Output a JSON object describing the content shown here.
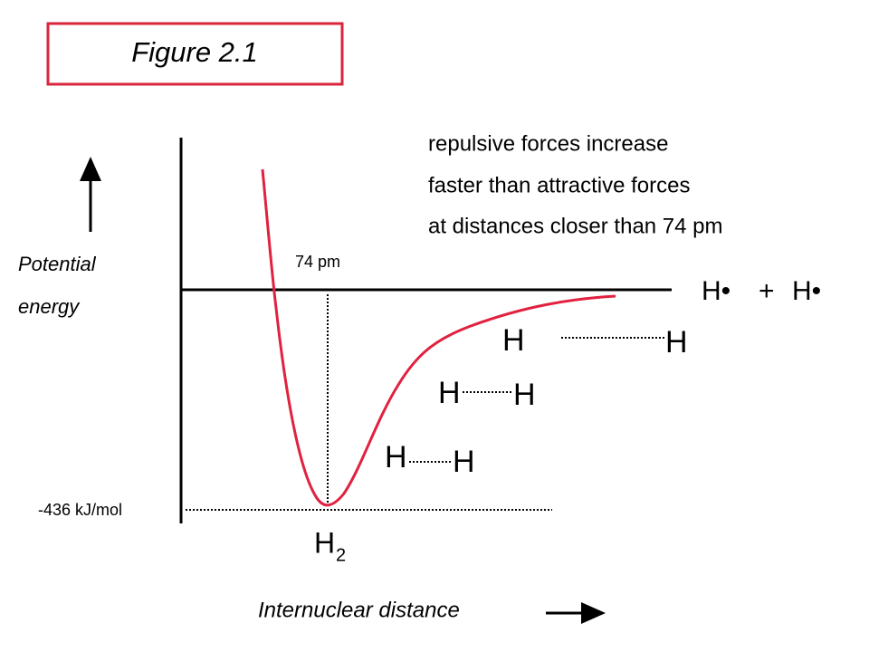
{
  "figure_label": "Figure 2.1",
  "note_lines": [
    "repulsive forces increase",
    "faster than attractive forces",
    "at distances closer than 74 pm"
  ],
  "y_axis_label": [
    "Potential",
    "energy"
  ],
  "distance_label": "74 pm",
  "dissociated": {
    "left": "H•",
    "plus": "+",
    "right": "H•"
  },
  "h_pairs": [
    [
      "H",
      "H"
    ],
    [
      "H",
      "H"
    ],
    [
      "H",
      "H"
    ]
  ],
  "energy_label": "-436 kJ/mol",
  "molecule": {
    "symbol": "H",
    "subscript": "2"
  },
  "x_axis_label": "Internuclear distance"
}
